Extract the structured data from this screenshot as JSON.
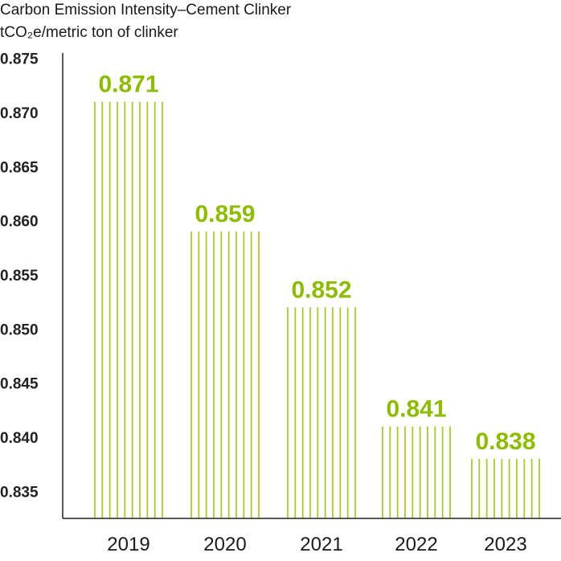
{
  "chart_data": {
    "type": "bar",
    "title": "Carbon Emission Intensity–Cement Clinker",
    "ylabel": "tCO₂e/metric ton of clinker",
    "xlabel": "",
    "categories": [
      "2019",
      "2020",
      "2021",
      "2022",
      "2023"
    ],
    "values": [
      0.871,
      0.859,
      0.852,
      0.841,
      0.838
    ],
    "data_labels": [
      "0.871",
      "0.859",
      "0.852",
      "0.841",
      "0.838"
    ],
    "yticks": [
      "0.875",
      "0.870",
      "0.865",
      "0.860",
      "0.855",
      "0.850",
      "0.845",
      "0.840",
      "0.835"
    ],
    "ylim": [
      0.8325,
      0.8755
    ],
    "grid": false,
    "legend": "none",
    "colors": {
      "bar": "#a6cc29",
      "label": "#8cbd00",
      "axis": "#222222"
    }
  }
}
